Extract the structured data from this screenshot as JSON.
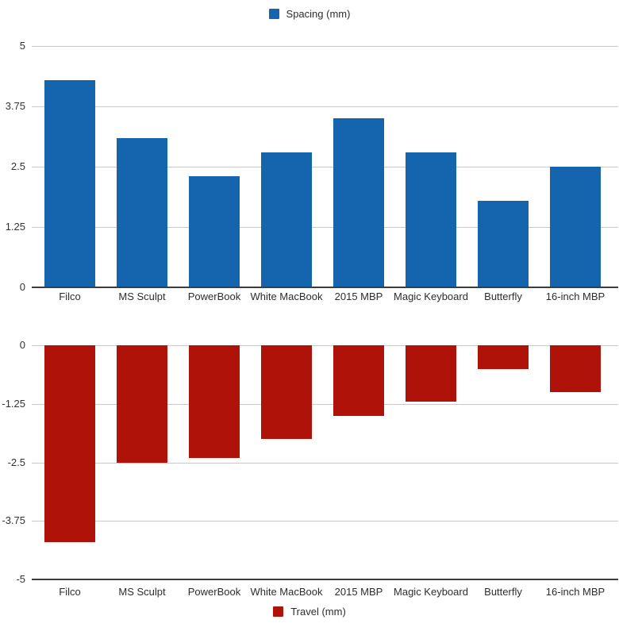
{
  "colors": {
    "background": "#ffffff",
    "grid": "#c9c9c9",
    "axis": "#3d3d3d",
    "text": "#2d2d2d"
  },
  "chart_data": [
    {
      "type": "bar",
      "name": "spacing",
      "legend": "Spacing (mm)",
      "legend_position": "top",
      "color": "#1565ae",
      "categories": [
        "Filco",
        "MS Sculpt",
        "PowerBook",
        "White MacBook",
        "2015 MBP",
        "Magic Keyboard",
        "Butterfly",
        "16-inch MBP"
      ],
      "values": [
        4.3,
        3.1,
        2.3,
        2.8,
        3.5,
        2.8,
        1.8,
        2.5
      ],
      "title": "",
      "xlabel": "",
      "ylabel": "",
      "ylim": [
        0,
        5
      ],
      "yticks": [
        0,
        1.25,
        2.5,
        3.75,
        5
      ],
      "grid": true
    },
    {
      "type": "bar",
      "name": "travel",
      "legend": "Travel (mm)",
      "legend_position": "bottom",
      "color": "#ae1208",
      "categories": [
        "Filco",
        "MS Sculpt",
        "PowerBook",
        "White MacBook",
        "2015 MBP",
        "Magic Keyboard",
        "Butterfly",
        "16-inch MBP"
      ],
      "values": [
        -4.2,
        -2.5,
        -2.4,
        -2.0,
        -1.5,
        -1.2,
        -0.5,
        -1.0
      ],
      "title": "",
      "xlabel": "",
      "ylabel": "",
      "ylim": [
        -5,
        0
      ],
      "yticks": [
        0,
        -1.25,
        -2.5,
        -3.75,
        -5
      ],
      "grid": true
    }
  ]
}
